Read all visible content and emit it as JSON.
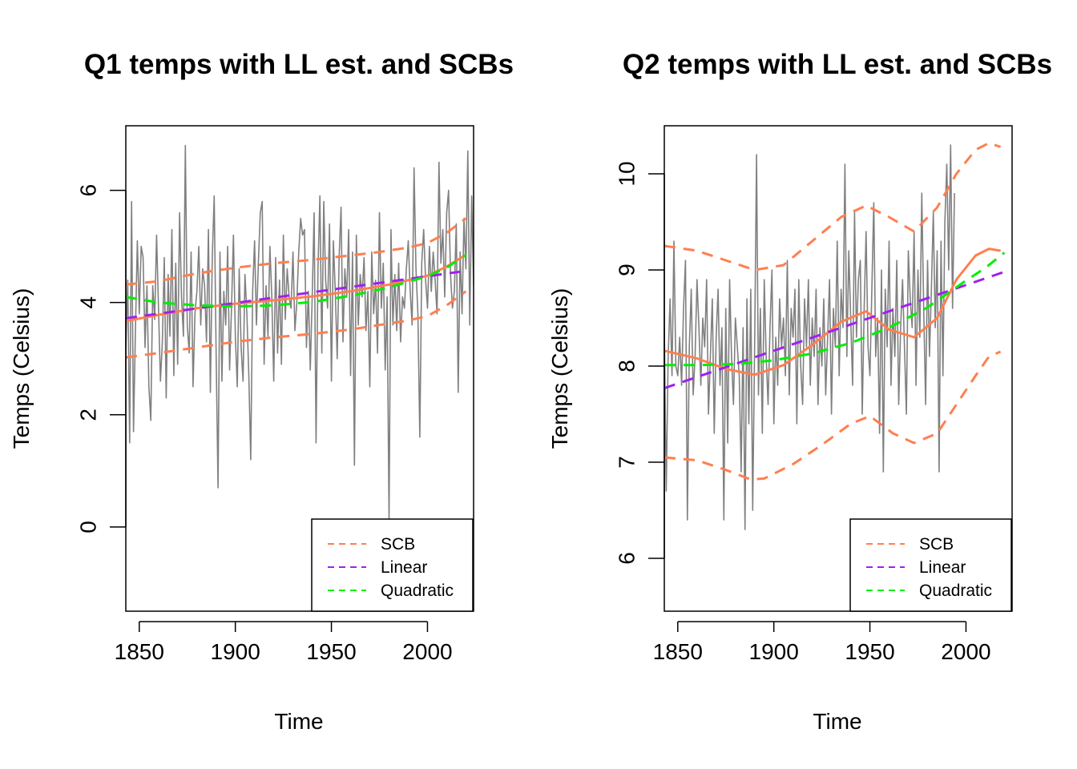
{
  "colors": {
    "observed": "#808080",
    "ll_estimate": "#FF7F50",
    "scb": "#FF7F50",
    "linear": "#A020F0",
    "quadratic": "#00EE00"
  },
  "chart_data": [
    {
      "type": "line",
      "title": "Q1 temps with LL est. and SCBs",
      "xlabel": "Time",
      "ylabel": "Temps (Celsius)",
      "xlim": [
        1843,
        2024
      ],
      "ylim": [
        -1.5,
        7.15
      ],
      "xticks": [
        1850,
        1900,
        1950,
        2000
      ],
      "xtick_labels": [
        "1850",
        "1900",
        "1950",
        "2000"
      ],
      "yticks": [
        0,
        2,
        4,
        6
      ],
      "ytick_labels": [
        "0",
        "2",
        "4",
        "6"
      ],
      "grid": false,
      "legend_position": "bottom-right",
      "legend": [
        {
          "label": "SCB",
          "color": "#FF7F50"
        },
        {
          "label": "Linear",
          "color": "#A020F0"
        },
        {
          "label": "Quadratic",
          "color": "#00EE00"
        }
      ],
      "series": [
        {
          "role": "observed",
          "style": "solid",
          "color": "#808080",
          "x_start": 1843,
          "x_step": 1,
          "values": [
            3.2,
            4.4,
            1.5,
            5.8,
            1.7,
            3.5,
            5.1,
            3.8,
            5,
            4.8,
            3.2,
            4.3,
            2.5,
            1.9,
            4.3,
            3.7,
            5.2,
            3.9,
            2.6,
            3.3,
            4.8,
            2.3,
            4.5,
            3.4,
            5.3,
            2.7,
            4.7,
            2.9,
            5.6,
            4.1,
            3.4,
            6.8,
            3.6,
            3.1,
            4.9,
            2.5,
            3.8,
            4.2,
            5,
            3.6,
            4.6,
            4.3,
            3.3,
            5.3,
            2.4,
            4.8,
            5.9,
            3.1,
            0.7,
            4.9,
            2.6,
            4.2,
            3.6,
            5,
            2.8,
            3.9,
            5.2,
            3.4,
            2.5,
            4.6,
            3.2,
            2.6,
            4.5,
            3.8,
            2.7,
            1.2,
            4.2,
            5.1,
            3.6,
            4.7,
            5.6,
            5.8,
            2.9,
            4.3,
            3.4,
            5,
            4.1,
            2.6,
            4.8,
            3.1,
            4.4,
            2.9,
            5.2,
            3.7,
            4.6,
            4.1,
            3.9,
            4.9,
            3.5,
            4,
            4.9,
            5.5,
            5.2,
            5.3,
            3.2,
            4.2,
            2.8,
            4.1,
            5.6,
            1.5,
            4.6,
            5.9,
            3.1,
            5.8,
            4.4,
            3.9,
            5.4,
            2.6,
            5.1,
            4.2,
            3,
            4.8,
            5.7,
            3.3,
            4.6,
            4.1,
            5.3,
            2.7,
            4.9,
            1.1,
            5.2,
            3.6,
            4.5,
            4.1,
            4.8,
            3.5,
            4.2,
            2.5,
            4.9,
            3.8,
            4.4,
            3.1,
            5.6,
            3.9,
            4.7,
            2.8,
            4.1,
            0.1,
            5.3,
            3.6,
            4.5,
            3.5,
            4.7,
            3.3,
            4.1,
            3.9,
            4.6,
            5.1,
            4.2,
            3.6,
            6.4,
            4.6,
            3.8,
            1.6,
            4.7,
            5.3,
            4.4,
            3.9,
            5,
            4.2,
            4.9,
            4.4,
            3.8,
            6.5,
            4.7,
            5.3,
            4.1,
            5.6,
            6,
            4.5,
            3.9,
            4.2,
            5.4,
            2.4,
            4.9,
            3.8,
            5.5,
            4.6,
            6.7,
            3.6,
            5.9,
            4.3
          ]
        },
        {
          "role": "scb-upper",
          "style": "dashed",
          "color": "#FF7F50",
          "x": [
            1843,
            1860,
            1880,
            1900,
            1920,
            1940,
            1960,
            1975,
            1990,
            2000,
            2010,
            2020
          ],
          "values": [
            4.32,
            4.38,
            4.52,
            4.62,
            4.7,
            4.76,
            4.84,
            4.9,
            4.98,
            5.06,
            5.24,
            5.5
          ]
        },
        {
          "role": "scb-lower",
          "style": "dashed",
          "color": "#FF7F50",
          "x": [
            1843,
            1860,
            1880,
            1900,
            1920,
            1940,
            1960,
            1975,
            1990,
            2000,
            2010,
            2020
          ],
          "values": [
            3.02,
            3.1,
            3.2,
            3.3,
            3.38,
            3.44,
            3.52,
            3.6,
            3.68,
            3.76,
            3.95,
            4.2
          ]
        },
        {
          "role": "ll-estimate",
          "style": "solid",
          "color": "#FF7F50",
          "x": [
            1843,
            1860,
            1880,
            1900,
            1920,
            1940,
            1960,
            1980,
            2000,
            2010,
            2020
          ],
          "values": [
            3.67,
            3.78,
            3.9,
            3.98,
            4.04,
            4.11,
            4.2,
            4.32,
            4.48,
            4.64,
            4.85
          ]
        },
        {
          "role": "linear",
          "name": "Linear",
          "style": "dashed",
          "color": "#A020F0",
          "x": [
            1843,
            2017
          ],
          "values": [
            3.72,
            4.55
          ]
        },
        {
          "role": "quadratic",
          "name": "Quadratic",
          "style": "dashed",
          "color": "#00EE00",
          "x": [
            1843,
            1860,
            1880,
            1900,
            1920,
            1940,
            1960,
            1980,
            2000,
            2010,
            2020
          ],
          "values": [
            4.1,
            4,
            3.95,
            3.93,
            3.95,
            4.01,
            4.12,
            4.27,
            4.47,
            4.62,
            4.85
          ]
        }
      ]
    },
    {
      "type": "line",
      "title": "Q2 temps with LL est. and SCBs",
      "xlabel": "Time",
      "ylabel": "Temps (Celsius)",
      "xlim": [
        1843,
        2024
      ],
      "ylim": [
        5.45,
        10.5
      ],
      "xticks": [
        1850,
        1900,
        1950,
        2000
      ],
      "xtick_labels": [
        "1850",
        "1900",
        "1950",
        "2000"
      ],
      "yticks": [
        6,
        7,
        8,
        9,
        10
      ],
      "ytick_labels": [
        "6",
        "7",
        "8",
        "9",
        "10"
      ],
      "grid": false,
      "legend_position": "bottom-right",
      "legend": [
        {
          "label": "SCB",
          "color": "#FF7F50"
        },
        {
          "label": "Linear",
          "color": "#A020F0"
        },
        {
          "label": "Quadratic",
          "color": "#00EE00"
        }
      ],
      "series": [
        {
          "role": "observed",
          "style": "solid",
          "color": "#808080",
          "x_start": 1843,
          "x_step": 1,
          "values": [
            8.4,
            6.7,
            8.1,
            8.7,
            7.9,
            9.3,
            8,
            7.9,
            8.3,
            7.8,
            8.6,
            9.1,
            6.4,
            8.2,
            8.8,
            7.7,
            8.1,
            8.9,
            8.4,
            7.8,
            8.5,
            8.2,
            8.9,
            7.5,
            8.1,
            8.7,
            7.3,
            8.3,
            8.8,
            7.8,
            8.4,
            6.4,
            8.6,
            7.2,
            8.9,
            8.1,
            7.6,
            8.5,
            8.2,
            7.9,
            6.9,
            8.4,
            6.3,
            8.7,
            7.4,
            8.8,
            6.5,
            8.2,
            10.2,
            7.7,
            8.6,
            7.3,
            8.9,
            8.1,
            7.6,
            8.4,
            9,
            7.4,
            8.3,
            7.8,
            8.7,
            8.2,
            8.5,
            7.9,
            9.1,
            7.7,
            8.6,
            8.3,
            8.8,
            7.4,
            8.9,
            8,
            7.6,
            8.7,
            8.2,
            8.9,
            7.8,
            8.5,
            8.1,
            8.8,
            7.6,
            8.4,
            8,
            8.7,
            7.7,
            8.3,
            8.9,
            7.5,
            8.6,
            8.2,
            9.3,
            7.9,
            8.8,
            8.4,
            10.1,
            8.1,
            9.2,
            8.5,
            7.8,
            9.6,
            8.3,
            8.9,
            9.1,
            7.5,
            8.6,
            9.4,
            8.2,
            7.9,
            8.8,
            9.7,
            8.1,
            8.5,
            7.3,
            9,
            6.9,
            8.8,
            8.2,
            9.3,
            7.8,
            8.6,
            8.1,
            9.1,
            7.6,
            8.4,
            8.9,
            8.2,
            7.5,
            9.2,
            8.7,
            8.4,
            9.4,
            7.8,
            9,
            8.3,
            9.8,
            8.6,
            7.6,
            9.1,
            8.1,
            8.8,
            9.6,
            8.4,
            9.2,
            6.9,
            9.3,
            7.9,
            9.5,
            10.1,
            9,
            10.3,
            8.6,
            9.8
          ]
        },
        {
          "role": "scb-upper",
          "style": "dashed",
          "color": "#FF7F50",
          "x": [
            1843,
            1860,
            1875,
            1890,
            1905,
            1920,
            1935,
            1948,
            1960,
            1973,
            1985,
            1995,
            2005,
            2012,
            2018
          ],
          "values": [
            9.25,
            9.2,
            9.1,
            9,
            9.05,
            9.3,
            9.55,
            9.67,
            9.55,
            9.4,
            9.65,
            10,
            10.25,
            10.32,
            10.28
          ]
        },
        {
          "role": "scb-lower",
          "style": "dashed",
          "color": "#FF7F50",
          "x": [
            1843,
            1860,
            1875,
            1888,
            1895,
            1910,
            1925,
            1940,
            1950,
            1962,
            1973,
            1985,
            1995,
            2005,
            2012,
            2018
          ],
          "values": [
            7.05,
            7.02,
            6.92,
            6.82,
            6.83,
            6.98,
            7.18,
            7.4,
            7.48,
            7.3,
            7.2,
            7.3,
            7.6,
            7.9,
            8.1,
            8.15
          ]
        },
        {
          "role": "ll-estimate",
          "style": "solid",
          "color": "#FF7F50",
          "x": [
            1843,
            1860,
            1875,
            1890,
            1905,
            1920,
            1935,
            1948,
            1960,
            1973,
            1985,
            1995,
            2005,
            2012,
            2018
          ],
          "values": [
            8.16,
            8.08,
            7.97,
            7.91,
            8.01,
            8.22,
            8.46,
            8.57,
            8.38,
            8.3,
            8.5,
            8.9,
            9.15,
            9.22,
            9.2
          ]
        },
        {
          "role": "linear",
          "name": "Linear",
          "style": "dashed",
          "color": "#A020F0",
          "x": [
            1843,
            2020
          ],
          "values": [
            7.77,
            8.98
          ]
        },
        {
          "role": "quadratic",
          "name": "Quadratic",
          "style": "dashed",
          "color": "#00EE00",
          "x": [
            1843,
            1860,
            1880,
            1900,
            1920,
            1940,
            1960,
            1980,
            2000,
            2010,
            2020
          ],
          "values": [
            8.01,
            8.01,
            8.02,
            8.06,
            8.13,
            8.24,
            8.4,
            8.61,
            8.89,
            9.02,
            9.18
          ]
        }
      ]
    }
  ]
}
